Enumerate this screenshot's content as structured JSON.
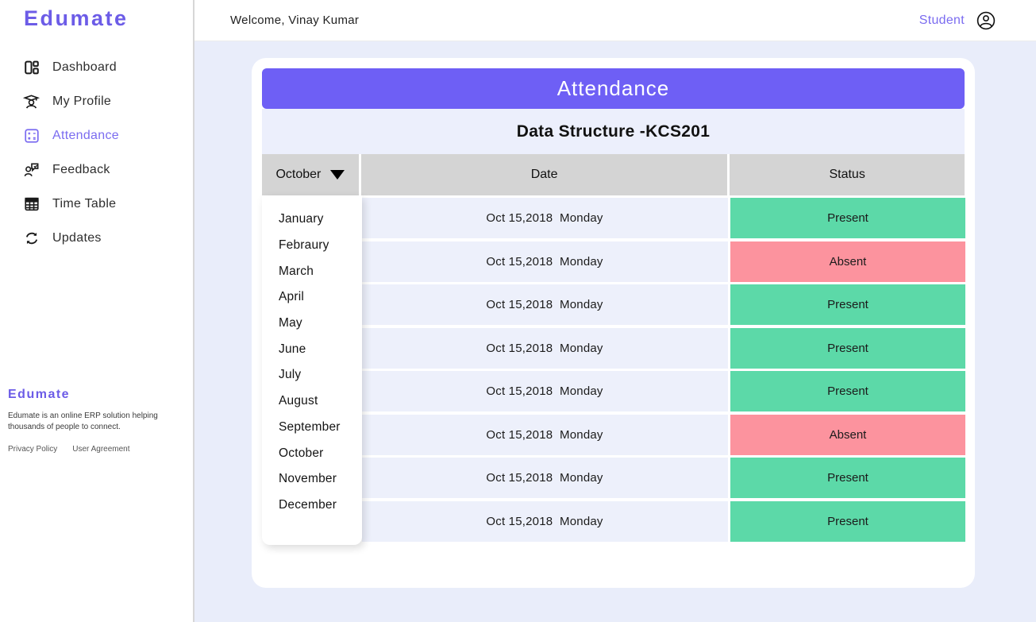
{
  "app": {
    "name": "Edumate"
  },
  "colors": {
    "accent": "#6E5FF5",
    "present": "#5CD9A8",
    "absent": "#FC939E",
    "page_bg": "#E9EDFA",
    "row_bg": "#EDF0FB",
    "header_gray": "#D4D4D4"
  },
  "sidebar": {
    "logo": "Edumate",
    "items": [
      {
        "label": "Dashboard",
        "icon": "dashboard-icon",
        "active": false
      },
      {
        "label": "My Profile",
        "icon": "graduation-cap-icon",
        "active": false
      },
      {
        "label": "Attendance",
        "icon": "attendance-grid-icon",
        "active": true
      },
      {
        "label": "Feedback",
        "icon": "feedback-person-icon",
        "active": false
      },
      {
        "label": "Time Table",
        "icon": "table-grid-icon",
        "active": false
      },
      {
        "label": "Updates",
        "icon": "sync-icon",
        "active": false
      }
    ],
    "footer": {
      "brand": "Edumate",
      "description": "Edumate is an online ERP solution helping thousands of people to connect.",
      "links": [
        "Privacy Policy",
        "User Agreement"
      ]
    }
  },
  "header": {
    "welcome": "Welcome, Vinay Kumar",
    "role": "Student",
    "user_icon": "account-circle-icon"
  },
  "attendance": {
    "title": "Attendance",
    "subject": "Data Structure -KCS201",
    "month_selected": "October",
    "dropdown_icon": "caret-down-icon",
    "columns": {
      "date": "Date",
      "status": "Status"
    },
    "months": [
      "January",
      "Febraury",
      "March",
      "April",
      "May",
      "June",
      "July",
      "August",
      "September",
      "October",
      "November",
      "December"
    ],
    "rows": [
      {
        "date": "Oct 15,2018  Monday",
        "status": "Present"
      },
      {
        "date": "Oct 15,2018  Monday",
        "status": "Absent"
      },
      {
        "date": "Oct 15,2018  Monday",
        "status": "Present"
      },
      {
        "date": "Oct 15,2018  Monday",
        "status": "Present"
      },
      {
        "date": "Oct 15,2018  Monday",
        "status": "Present"
      },
      {
        "date": "Oct 15,2018  Monday",
        "status": "Absent"
      },
      {
        "date": "Oct 15,2018  Monday",
        "status": "Present"
      },
      {
        "date": "Oct 15,2018  Monday",
        "status": "Present"
      }
    ]
  }
}
